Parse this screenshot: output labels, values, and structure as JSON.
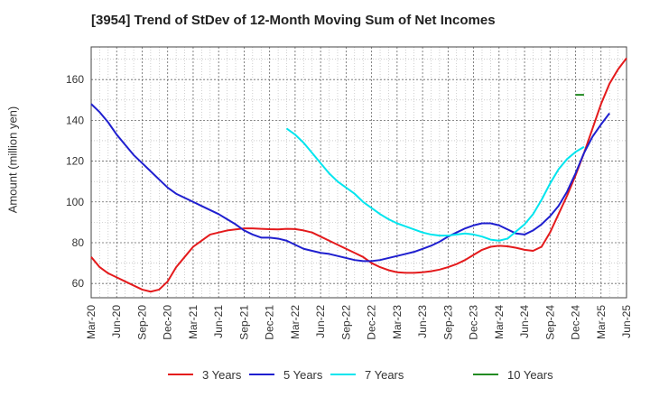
{
  "chart_data": {
    "type": "line",
    "title": "[3954]  Trend of StDev of 12-Month Moving Sum of Net Incomes",
    "ylabel": "Amount (million yen)",
    "xlabel": "",
    "ylim": [
      53,
      176
    ],
    "yticks": [
      60,
      80,
      100,
      120,
      140,
      160
    ],
    "xlim": [
      "Mar-20",
      "Mar-25"
    ],
    "xticks": [
      "Mar-20",
      "Jun-20",
      "Sep-20",
      "Dec-20",
      "Mar-21",
      "Jun-21",
      "Sep-21",
      "Dec-21",
      "Mar-22",
      "Jun-22",
      "Sep-22",
      "Dec-22",
      "Mar-23",
      "Jun-23",
      "Sep-23",
      "Dec-23",
      "Mar-24",
      "Jun-24",
      "Sep-24",
      "Dec-24",
      "Mar-25",
      "Jun-25"
    ],
    "grid": true,
    "legend_position": "bottom",
    "series": [
      {
        "name": "3 Years",
        "color": "#e41a1c",
        "start": "Mar-20",
        "values": [
          73,
          68,
          65,
          63,
          61,
          59,
          57,
          56,
          57,
          61,
          68,
          73,
          78,
          81,
          84,
          85,
          86,
          86.5,
          87,
          87,
          86.8,
          86.6,
          86.5,
          86.8,
          86.7,
          86,
          85,
          83,
          81,
          79,
          77,
          75,
          73,
          70,
          68,
          66.5,
          65.5,
          65.2,
          65.2,
          65.5,
          66,
          66.8,
          68,
          69.5,
          71.5,
          74,
          76.5,
          78,
          78.5,
          78.2,
          77.5,
          76.5,
          76,
          78,
          85,
          94,
          103,
          113,
          124,
          136,
          148,
          158,
          165,
          170.5
        ]
      },
      {
        "name": "5 Years",
        "color": "#1f1fcf",
        "start": "Mar-20",
        "values": [
          148,
          144,
          139,
          133,
          128,
          123,
          119,
          115,
          111,
          107,
          104,
          102,
          100,
          98,
          96,
          94,
          91.5,
          89,
          86,
          84,
          82.5,
          82.5,
          82,
          81,
          79,
          77,
          76,
          75,
          74.5,
          73.5,
          72.5,
          71.5,
          71,
          71,
          71.5,
          72.5,
          73.5,
          74.5,
          75.5,
          77,
          78.5,
          80.5,
          83,
          85,
          87,
          88.5,
          89.5,
          89.5,
          88.5,
          86.5,
          84.5,
          84,
          86,
          89,
          93,
          98,
          105,
          114,
          124,
          132,
          138,
          143.5
        ]
      },
      {
        "name": "7 Years",
        "color": "#00e5ee",
        "start": "Feb-22",
        "values": [
          136,
          133,
          129,
          124,
          119,
          114,
          110,
          107,
          104,
          100,
          97,
          94,
          91.5,
          89.5,
          88,
          86.5,
          85,
          84,
          83.5,
          83.5,
          84,
          84.5,
          84,
          83,
          81.5,
          81,
          82,
          85.5,
          89,
          94,
          101,
          109,
          116,
          121,
          124.5,
          127
        ]
      },
      {
        "name": "10 Years",
        "color": "#228b22",
        "start": "Dec-24",
        "values": [
          152.5,
          152.5
        ]
      }
    ]
  }
}
